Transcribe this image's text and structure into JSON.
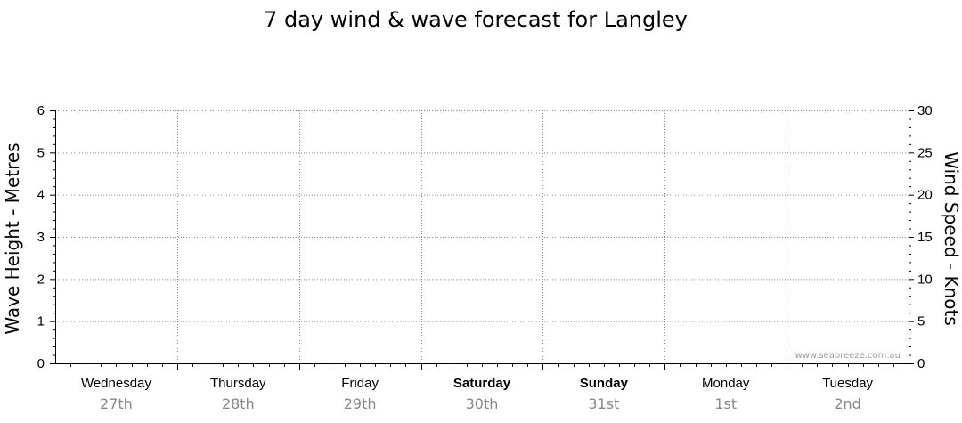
{
  "chart_data": {
    "type": "line",
    "title": "7 day wind & wave forecast for Langley",
    "left_axis": {
      "label": "Wave Height - Metres",
      "range": [
        0,
        6
      ],
      "ticks": [
        "0",
        "1",
        "2",
        "3",
        "4",
        "5",
        "6"
      ]
    },
    "right_axis": {
      "label": "Wind Speed - Knots",
      "range": [
        0,
        30
      ],
      "ticks": [
        "0",
        "5",
        "10",
        "15",
        "20",
        "25",
        "30"
      ]
    },
    "days": [
      {
        "name": "Wednesday",
        "date": "27th",
        "bold": false
      },
      {
        "name": "Thursday",
        "date": "28th",
        "bold": false
      },
      {
        "name": "Friday",
        "date": "29th",
        "bold": false
      },
      {
        "name": "Saturday",
        "date": "30th",
        "bold": true
      },
      {
        "name": "Sunday",
        "date": "31st",
        "bold": true
      },
      {
        "name": "Monday",
        "date": "1st",
        "bold": false
      },
      {
        "name": "Tuesday",
        "date": "2nd",
        "bold": false
      }
    ],
    "series": [],
    "grid": true,
    "watermark": "www.seabreeze.com.au"
  },
  "colors": {
    "grid": "#8c8c8c",
    "axis": "#000000",
    "date_text": "#888888",
    "watermark": "#9a9a9a"
  }
}
